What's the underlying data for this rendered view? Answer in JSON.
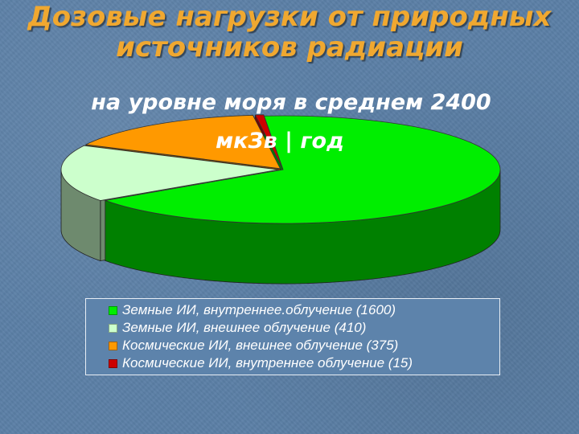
{
  "slide": {
    "title_line1": "Дозовые нагрузки от природных",
    "title_line2": "источников радиации"
  },
  "chart_data": {
    "type": "pie",
    "title_line1": "на уровне моря в среднем 2400",
    "title_line2": "мкЗв | год",
    "style": "3d-exploded",
    "legend_placement": "bottom",
    "series": [
      {
        "name": "Земные ИИ, внутреннее.облучение (1600)",
        "value": 1600,
        "color": "#00ee00",
        "side": "#008000"
      },
      {
        "name": "Земные ИИ, внешнее облучение (410)",
        "value": 410,
        "color": "#ccffcc",
        "side": "#6e8a6e"
      },
      {
        "name": "Космические ИИ, внешнее облучение (375)",
        "value": 375,
        "color": "#ff9900",
        "side": "#7a4a00"
      },
      {
        "name": "Космические ИИ, внутреннее облучение (15)",
        "value": 15,
        "color": "#cc0000",
        "side": "#7a0000"
      }
    ]
  }
}
